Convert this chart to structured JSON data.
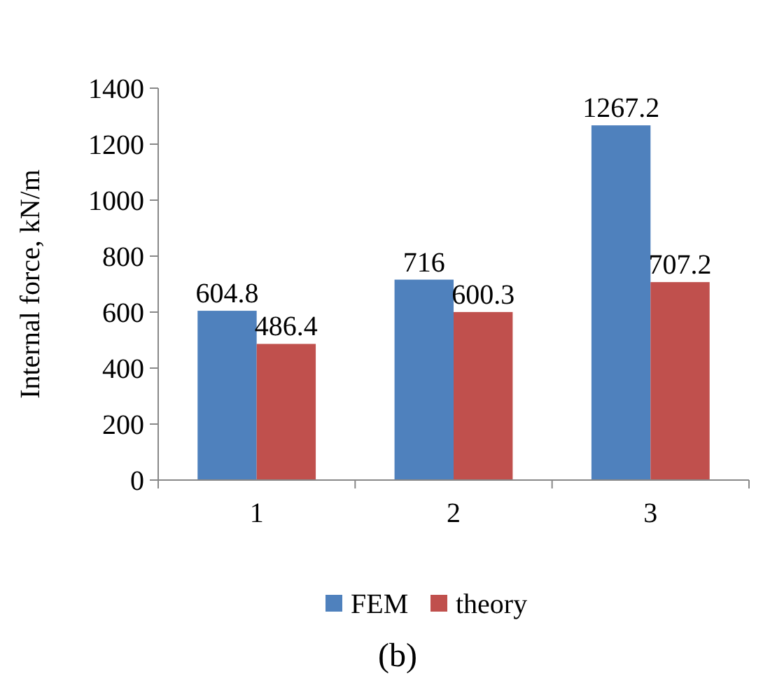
{
  "chart_data": {
    "type": "bar",
    "ylabel": "Internal force, kN/m",
    "categories": [
      "1",
      "2",
      "3"
    ],
    "series": [
      {
        "name": "FEM",
        "color": "#4f81bd",
        "values": [
          604.8,
          716,
          1267.2
        ]
      },
      {
        "name": "theory",
        "color": "#c0504d",
        "values": [
          486.4,
          600.3,
          707.2
        ]
      }
    ],
    "ylim": [
      0,
      1400
    ],
    "yticks": [
      0,
      200,
      400,
      600,
      800,
      1000,
      1200,
      1400
    ],
    "data_labels": true,
    "grid": false,
    "legend": "bottom",
    "annotations": [
      "(b)"
    ]
  }
}
